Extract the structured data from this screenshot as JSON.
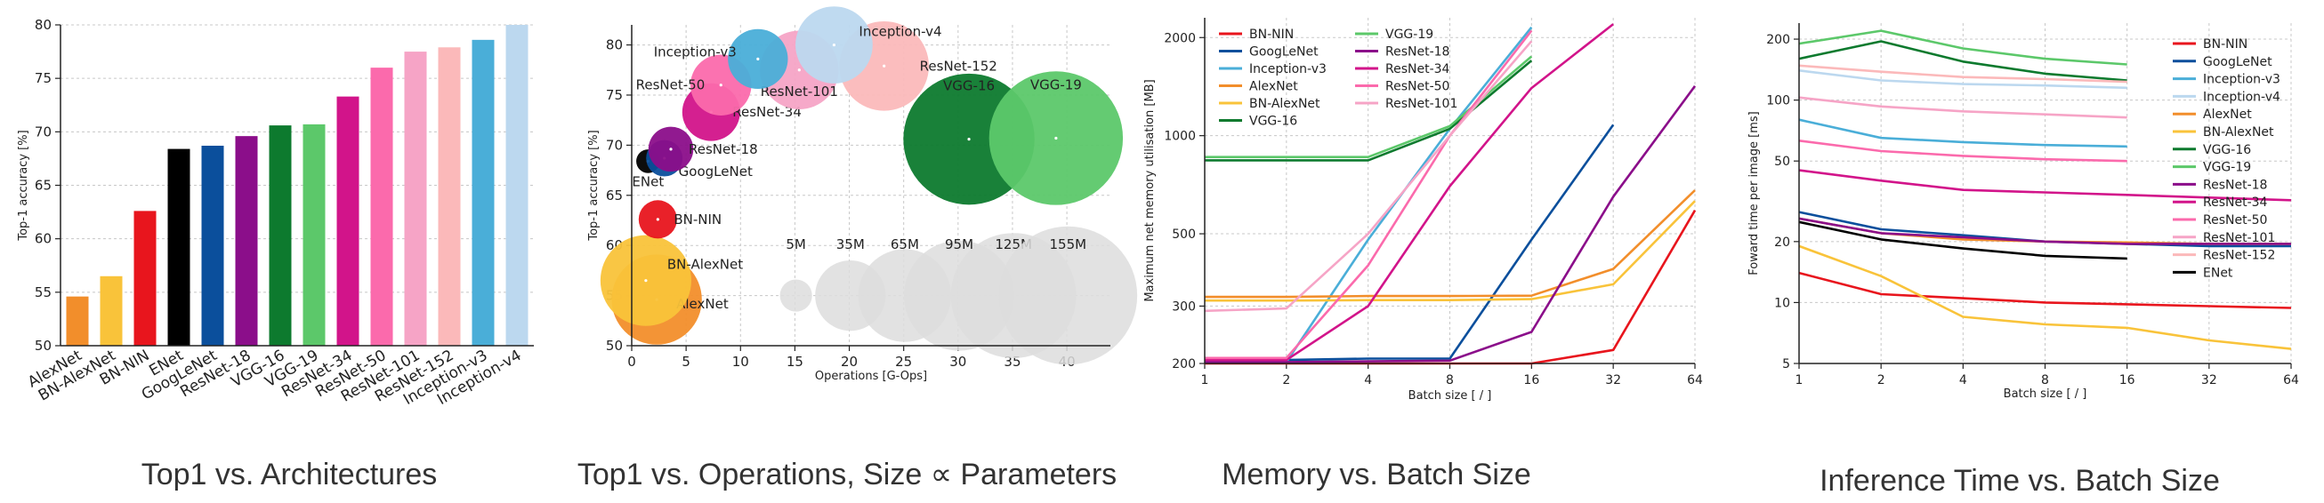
{
  "captions": [
    "Top1 vs. Architectures",
    "Top1 vs. Operations, Size ∝ Parameters",
    "Memory vs. Batch Size",
    "Inference Time vs. Batch Size"
  ],
  "colors": {
    "AlexNet": "#f28e2b",
    "BN-AlexNet": "#f9c33a",
    "BN-NIN": "#e8151d",
    "ENet": "#000000",
    "GoogLeNet": "#0b4f9c",
    "ResNet-18": "#8b0e8a",
    "VGG-16": "#0d7a2e",
    "VGG-19": "#5cc86a",
    "ResNet-34": "#d2148a",
    "ResNet-50": "#fb6aac",
    "ResNet-101": "#f6a4c6",
    "ResNet-152": "#fbb9ba",
    "Inception-v3": "#4aaed8",
    "Inception-v4": "#bcd8ef",
    "size_legend": "#dddddd",
    "grid": "#c8c8c8"
  },
  "chart_data": [
    {
      "type": "bar",
      "title": "Top1 vs. Architectures",
      "xlabel": "",
      "ylabel": "Top-1 accuracy [%]",
      "ylim": [
        50,
        80
      ],
      "yticks": [
        "50",
        "55",
        "60",
        "65",
        "70",
        "75",
        "80"
      ],
      "categories": [
        "AlexNet",
        "BN-AlexNet",
        "BN-NIN",
        "ENet",
        "GoogLeNet",
        "ResNet-18",
        "VGG-16",
        "VGG-19",
        "ResNet-34",
        "ResNet-50",
        "ResNet-101",
        "ResNet-152",
        "Inception-v3",
        "Inception-v4"
      ],
      "values": [
        54.6,
        56.5,
        62.6,
        68.4,
        68.7,
        69.6,
        70.6,
        70.7,
        73.3,
        76.0,
        77.5,
        77.9,
        78.6,
        80.0
      ]
    },
    {
      "type": "scatter",
      "title": "Top1 vs. Operations, Size ∝ Parameters",
      "xlabel": "Operations [G-Ops]",
      "ylabel": "Top-1 accuracy [%]",
      "xlim": [
        0,
        44
      ],
      "ylim": [
        50,
        82
      ],
      "xticks": [
        "0",
        "5",
        "10",
        "15",
        "20",
        "25",
        "30",
        "35",
        "40"
      ],
      "yticks": [
        "50",
        "55",
        "60",
        "65",
        "70",
        "75",
        "80"
      ],
      "points": [
        {
          "name": "AlexNet",
          "label": "AlexNet",
          "ops": 2.3,
          "acc": 54.6,
          "params_m": 61
        },
        {
          "name": "BN-AlexNet",
          "label": "BN-AlexNet",
          "ops": 1.3,
          "acc": 56.5,
          "params_m": 62
        },
        {
          "name": "BN-NIN",
          "label": "BN-NIN",
          "ops": 2.4,
          "acc": 62.6,
          "params_m": 8
        },
        {
          "name": "ENet",
          "label": "ENet",
          "ops": 1.5,
          "acc": 68.4,
          "params_m": 2
        },
        {
          "name": "GoogLeNet",
          "label": "GoogLeNet",
          "ops": 3.0,
          "acc": 68.7,
          "params_m": 7
        },
        {
          "name": "ResNet-18",
          "label": "ResNet-18",
          "ops": 3.6,
          "acc": 69.6,
          "params_m": 12
        },
        {
          "name": "VGG-16",
          "label": "VGG-16",
          "ops": 31.0,
          "acc": 70.6,
          "params_m": 138
        },
        {
          "name": "VGG-19",
          "label": "VGG-19",
          "ops": 39.0,
          "acc": 70.7,
          "params_m": 144
        },
        {
          "name": "ResNet-34",
          "label": "ResNet-34",
          "ops": 7.3,
          "acc": 73.3,
          "params_m": 22
        },
        {
          "name": "ResNet-50",
          "label": "ResNet-50",
          "ops": 8.2,
          "acc": 76.0,
          "params_m": 25
        },
        {
          "name": "ResNet-101",
          "label": "ResNet-101",
          "ops": 15.4,
          "acc": 77.5,
          "params_m": 45
        },
        {
          "name": "ResNet-152",
          "label": "ResNet-152",
          "ops": 23.2,
          "acc": 77.9,
          "params_m": 60
        },
        {
          "name": "Inception-v3",
          "label": "Inception-v3",
          "ops": 11.6,
          "acc": 78.6,
          "params_m": 24
        },
        {
          "name": "Inception-v4",
          "label": "Inception-v4",
          "ops": 18.6,
          "acc": 80.0,
          "params_m": 43
        }
      ],
      "size_legend": {
        "acc": 55,
        "items": [
          {
            "label": "5M",
            "ops": 15.1
          },
          {
            "label": "35M",
            "ops": 20.1
          },
          {
            "label": "65M",
            "ops": 25.1
          },
          {
            "label": "95M",
            "ops": 30.1
          },
          {
            "label": "125M",
            "ops": 35.1
          },
          {
            "label": "155M",
            "ops": 40.1
          }
        ]
      }
    },
    {
      "type": "line",
      "title": "Memory vs. Batch Size",
      "xlabel": "Batch size [ / ]",
      "ylabel": "Maximum net memory utilisation [MB]",
      "xscale": "log2",
      "yscale": "log",
      "x": [
        1,
        2,
        4,
        8,
        16,
        32,
        64
      ],
      "xticks": [
        "1",
        "2",
        "4",
        "8",
        "16",
        "32",
        "64"
      ],
      "ylim": [
        200,
        2300
      ],
      "yticks": [
        {
          "v": 200,
          "label": "200"
        },
        {
          "v": 300,
          "label": "300"
        },
        {
          "v": 500,
          "label": "500"
        },
        {
          "v": 1000,
          "label": "1000"
        },
        {
          "v": 2000,
          "label": "2000"
        }
      ],
      "legend_columns": [
        [
          "BN-NIN",
          "GoogLeNet",
          "Inception-v3",
          "AlexNet",
          "BN-AlexNet",
          "VGG-16"
        ],
        [
          "VGG-19",
          "ResNet-18",
          "ResNet-34",
          "ResNet-50",
          "ResNet-101"
        ]
      ],
      "series": [
        {
          "name": "BN-NIN",
          "values": [
            200,
            200,
            200,
            200,
            200,
            220,
            590
          ]
        },
        {
          "name": "GoogLeNet",
          "values": [
            205,
            205,
            207,
            207,
            480,
            1080,
            null
          ]
        },
        {
          "name": "Inception-v3",
          "values": [
            202,
            202,
            480,
            1050,
            2150,
            null,
            null
          ]
        },
        {
          "name": "AlexNet",
          "values": [
            320,
            320,
            322,
            322,
            323,
            390,
            680
          ]
        },
        {
          "name": "BN-AlexNet",
          "values": [
            312,
            312,
            313,
            313,
            315,
            350,
            630
          ]
        },
        {
          "name": "VGG-16",
          "values": [
            840,
            840,
            840,
            1050,
            1700,
            null,
            null
          ]
        },
        {
          "name": "VGG-19",
          "values": [
            860,
            860,
            860,
            1070,
            1750,
            null,
            null
          ]
        },
        {
          "name": "ResNet-18",
          "values": [
            202,
            202,
            203,
            204,
            250,
            650,
            1420
          ]
        },
        {
          "name": "ResNet-34",
          "values": [
            205,
            205,
            300,
            700,
            1400,
            2200,
            null
          ]
        },
        {
          "name": "ResNet-50",
          "values": [
            208,
            208,
            400,
            1000,
            2100,
            null,
            null
          ]
        },
        {
          "name": "ResNet-101",
          "values": [
            290,
            295,
            500,
            1000,
            1950,
            null,
            null
          ]
        }
      ]
    },
    {
      "type": "line",
      "title": "Inference Time vs. Batch Size",
      "xlabel": "Batch size [ / ]",
      "ylabel": "Foward time per image [ms]",
      "xscale": "log2",
      "yscale": "log",
      "x": [
        1,
        2,
        4,
        8,
        16,
        32,
        64
      ],
      "xticks": [
        "1",
        "2",
        "4",
        "8",
        "16",
        "32",
        "64"
      ],
      "ylim": [
        5,
        240
      ],
      "yticks": [
        {
          "v": 5,
          "label": "5"
        },
        {
          "v": 10,
          "label": "10"
        },
        {
          "v": 20,
          "label": "20"
        },
        {
          "v": 50,
          "label": "50"
        },
        {
          "v": 100,
          "label": "100"
        },
        {
          "v": 200,
          "label": "200"
        }
      ],
      "legend": [
        "BN-NIN",
        "GoogLeNet",
        "Inception-v3",
        "Inception-v4",
        "AlexNet",
        "BN-AlexNet",
        "VGG-16",
        "VGG-19",
        "ResNet-18",
        "ResNet-34",
        "ResNet-50",
        "ResNet-101",
        "ResNet-152",
        "ENet"
      ],
      "series": [
        {
          "name": "BN-NIN",
          "values": [
            14,
            11,
            10.5,
            10,
            9.8,
            9.6,
            9.4
          ]
        },
        {
          "name": "GoogLeNet",
          "values": [
            28,
            23,
            21.5,
            20,
            19.5,
            19,
            19
          ]
        },
        {
          "name": "Inception-v3",
          "values": [
            80,
            65,
            62,
            60,
            59,
            null,
            null
          ]
        },
        {
          "name": "Inception-v4",
          "values": [
            140,
            125,
            120,
            118,
            115,
            null,
            null
          ]
        },
        {
          "name": "AlexNet",
          "values": [
            26,
            22,
            20.5,
            20,
            19.8,
            19.5,
            19.5
          ]
        },
        {
          "name": "BN-AlexNet",
          "values": [
            19,
            13.5,
            8.5,
            7.8,
            7.5,
            6.5,
            5.9
          ]
        },
        {
          "name": "VGG-16",
          "values": [
            160,
            195,
            155,
            135,
            125,
            null,
            null
          ]
        },
        {
          "name": "VGG-19",
          "values": [
            190,
            220,
            180,
            160,
            150,
            null,
            null
          ]
        },
        {
          "name": "ResNet-18",
          "values": [
            26,
            22,
            21,
            20,
            19.5,
            19.5,
            19.5
          ]
        },
        {
          "name": "ResNet-34",
          "values": [
            45,
            40,
            36,
            35,
            34,
            33,
            32
          ]
        },
        {
          "name": "ResNet-50",
          "values": [
            63,
            56,
            53,
            51,
            50,
            null,
            null
          ]
        },
        {
          "name": "ResNet-101",
          "values": [
            103,
            93,
            88,
            85,
            82,
            null,
            null
          ]
        },
        {
          "name": "ResNet-152",
          "values": [
            148,
            138,
            130,
            127,
            123,
            null,
            null
          ]
        },
        {
          "name": "ENet",
          "values": [
            25,
            20.5,
            18.5,
            17,
            16.5,
            null,
            null
          ]
        }
      ]
    }
  ]
}
